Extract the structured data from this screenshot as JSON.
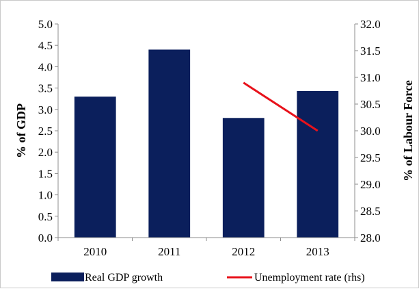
{
  "chart_data": {
    "type": "bar",
    "title": "",
    "categories": [
      "2010",
      "2011",
      "2012",
      "2013"
    ],
    "series": [
      {
        "name": "Real GDP growth",
        "type": "bar",
        "axis": "left",
        "color": "#0b1f5c",
        "values": [
          3.3,
          4.4,
          2.8,
          3.43
        ]
      },
      {
        "name": "Unemployment rate (rhs)",
        "type": "line",
        "axis": "right",
        "color": "#e8121b",
        "x": [
          "2012",
          "2013"
        ],
        "values": [
          30.9,
          30.0
        ]
      }
    ],
    "ylabel": "% of GDP",
    "y2label": "% of Labour Force",
    "ylim": [
      0.0,
      5.0
    ],
    "y2lim": [
      28.0,
      32.0
    ],
    "yticks": [
      "0.0",
      "0.5",
      "1.0",
      "1.5",
      "2.0",
      "2.5",
      "3.0",
      "3.5",
      "4.0",
      "4.5",
      "5.0"
    ],
    "y2ticks": [
      "28.0",
      "28.5",
      "29.0",
      "29.5",
      "30.0",
      "30.5",
      "31.0",
      "31.5",
      "32.0"
    ],
    "grid": false,
    "legend_position": "bottom"
  }
}
